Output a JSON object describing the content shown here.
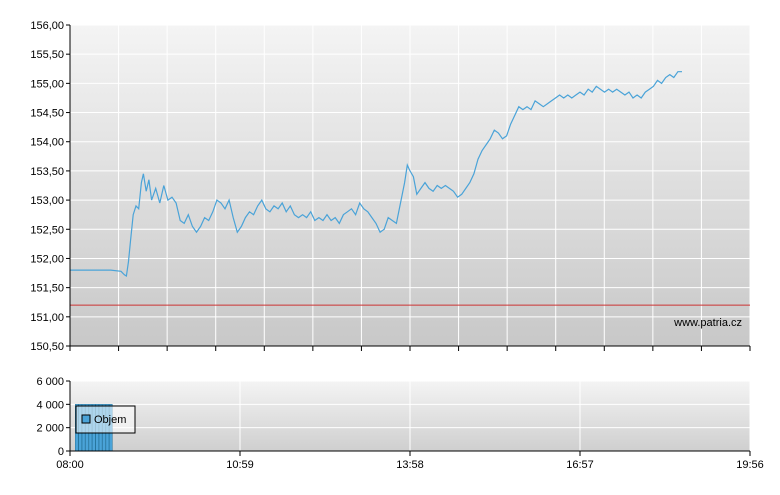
{
  "watermark": "www.patria.cz",
  "chart_data": [
    {
      "type": "line",
      "title": "",
      "xlabel": "",
      "ylabel": "",
      "ylim": [
        150.5,
        156.0
      ],
      "y_ticks": [
        "150,50",
        "151,00",
        "151,50",
        "152,00",
        "152,50",
        "153,00",
        "153,50",
        "154,00",
        "154,50",
        "155,00",
        "155,50",
        "156,00"
      ],
      "grid": true,
      "colors": {
        "price": "#4aa3d8",
        "reference": "#cc3333",
        "grid": "#ffffff",
        "bg_top": "#f2f2f2",
        "bg_bottom": "#cccccc"
      },
      "reference_line": 151.2,
      "series": [
        {
          "values": [
            [
              0.0,
              151.8
            ],
            [
              0.06,
              151.8
            ],
            [
              0.075,
              151.78
            ],
            [
              0.08,
              151.72
            ],
            [
              0.083,
              151.7
            ],
            [
              0.086,
              151.95
            ],
            [
              0.089,
              152.3
            ],
            [
              0.093,
              152.75
            ],
            [
              0.097,
              152.9
            ],
            [
              0.101,
              152.85
            ],
            [
              0.105,
              153.3
            ],
            [
              0.108,
              153.45
            ],
            [
              0.112,
              153.15
            ],
            [
              0.116,
              153.35
            ],
            [
              0.12,
              153.0
            ],
            [
              0.126,
              153.2
            ],
            [
              0.132,
              152.95
            ],
            [
              0.138,
              153.25
            ],
            [
              0.144,
              153.0
            ],
            [
              0.15,
              153.05
            ],
            [
              0.156,
              152.95
            ],
            [
              0.162,
              152.65
            ],
            [
              0.168,
              152.6
            ],
            [
              0.174,
              152.75
            ],
            [
              0.18,
              152.55
            ],
            [
              0.186,
              152.45
            ],
            [
              0.192,
              152.55
            ],
            [
              0.198,
              152.7
            ],
            [
              0.204,
              152.65
            ],
            [
              0.21,
              152.8
            ],
            [
              0.216,
              153.0
            ],
            [
              0.222,
              152.95
            ],
            [
              0.228,
              152.85
            ],
            [
              0.234,
              153.0
            ],
            [
              0.24,
              152.7
            ],
            [
              0.246,
              152.45
            ],
            [
              0.252,
              152.55
            ],
            [
              0.258,
              152.7
            ],
            [
              0.264,
              152.8
            ],
            [
              0.27,
              152.75
            ],
            [
              0.276,
              152.9
            ],
            [
              0.282,
              153.0
            ],
            [
              0.288,
              152.85
            ],
            [
              0.294,
              152.8
            ],
            [
              0.3,
              152.9
            ],
            [
              0.306,
              152.85
            ],
            [
              0.312,
              152.95
            ],
            [
              0.318,
              152.8
            ],
            [
              0.324,
              152.9
            ],
            [
              0.33,
              152.75
            ],
            [
              0.336,
              152.7
            ],
            [
              0.342,
              152.75
            ],
            [
              0.348,
              152.7
            ],
            [
              0.354,
              152.8
            ],
            [
              0.36,
              152.65
            ],
            [
              0.366,
              152.7
            ],
            [
              0.372,
              152.65
            ],
            [
              0.378,
              152.75
            ],
            [
              0.384,
              152.65
            ],
            [
              0.39,
              152.7
            ],
            [
              0.396,
              152.6
            ],
            [
              0.402,
              152.75
            ],
            [
              0.408,
              152.8
            ],
            [
              0.414,
              152.85
            ],
            [
              0.42,
              152.75
            ],
            [
              0.426,
              152.95
            ],
            [
              0.432,
              152.85
            ],
            [
              0.438,
              152.8
            ],
            [
              0.444,
              152.7
            ],
            [
              0.45,
              152.6
            ],
            [
              0.456,
              152.45
            ],
            [
              0.462,
              152.5
            ],
            [
              0.468,
              152.7
            ],
            [
              0.474,
              152.65
            ],
            [
              0.48,
              152.6
            ],
            [
              0.486,
              152.95
            ],
            [
              0.492,
              153.3
            ],
            [
              0.496,
              153.6
            ],
            [
              0.5,
              153.5
            ],
            [
              0.505,
              153.4
            ],
            [
              0.51,
              153.1
            ],
            [
              0.516,
              153.2
            ],
            [
              0.522,
              153.3
            ],
            [
              0.528,
              153.2
            ],
            [
              0.534,
              153.15
            ],
            [
              0.54,
              153.25
            ],
            [
              0.546,
              153.2
            ],
            [
              0.552,
              153.25
            ],
            [
              0.558,
              153.2
            ],
            [
              0.564,
              153.15
            ],
            [
              0.57,
              153.05
            ],
            [
              0.576,
              153.1
            ],
            [
              0.582,
              153.2
            ],
            [
              0.588,
              153.3
            ],
            [
              0.594,
              153.45
            ],
            [
              0.6,
              153.7
            ],
            [
              0.606,
              153.85
            ],
            [
              0.612,
              153.95
            ],
            [
              0.618,
              154.05
            ],
            [
              0.624,
              154.2
            ],
            [
              0.63,
              154.15
            ],
            [
              0.636,
              154.05
            ],
            [
              0.642,
              154.1
            ],
            [
              0.648,
              154.3
            ],
            [
              0.654,
              154.45
            ],
            [
              0.66,
              154.6
            ],
            [
              0.666,
              154.55
            ],
            [
              0.672,
              154.6
            ],
            [
              0.678,
              154.55
            ],
            [
              0.684,
              154.7
            ],
            [
              0.69,
              154.65
            ],
            [
              0.696,
              154.6
            ],
            [
              0.702,
              154.65
            ],
            [
              0.708,
              154.7
            ],
            [
              0.714,
              154.75
            ],
            [
              0.72,
              154.8
            ],
            [
              0.726,
              154.75
            ],
            [
              0.732,
              154.8
            ],
            [
              0.738,
              154.75
            ],
            [
              0.744,
              154.8
            ],
            [
              0.75,
              154.85
            ],
            [
              0.756,
              154.8
            ],
            [
              0.762,
              154.9
            ],
            [
              0.768,
              154.85
            ],
            [
              0.774,
              154.95
            ],
            [
              0.78,
              154.9
            ],
            [
              0.786,
              154.85
            ],
            [
              0.792,
              154.9
            ],
            [
              0.798,
              154.85
            ],
            [
              0.804,
              154.9
            ],
            [
              0.81,
              154.85
            ],
            [
              0.816,
              154.8
            ],
            [
              0.822,
              154.85
            ],
            [
              0.828,
              154.75
            ],
            [
              0.834,
              154.8
            ],
            [
              0.84,
              154.75
            ],
            [
              0.846,
              154.85
            ],
            [
              0.852,
              154.9
            ],
            [
              0.858,
              154.95
            ],
            [
              0.864,
              155.05
            ],
            [
              0.87,
              155.0
            ],
            [
              0.876,
              155.1
            ],
            [
              0.882,
              155.15
            ],
            [
              0.888,
              155.1
            ],
            [
              0.894,
              155.2
            ],
            [
              0.9,
              155.2
            ]
          ]
        }
      ]
    },
    {
      "type": "bar",
      "title": "",
      "xlabel": "",
      "ylabel": "",
      "ylim": [
        0,
        6000
      ],
      "y_ticks": [
        "0",
        "2 000",
        "4 000",
        "6 000"
      ],
      "x_ticks": [
        "08:00",
        "10:59",
        "13:58",
        "16:57",
        "19:56"
      ],
      "grid": true,
      "colors": {
        "bar": "#4aa3d8",
        "bar_outline": "#1f6f9a"
      },
      "legend": {
        "label": "Objem",
        "position": "top-left"
      },
      "series": [
        {
          "name": "Objem",
          "values": [
            [
              0.01,
              4000
            ],
            [
              0.015,
              4000
            ],
            [
              0.02,
              4000
            ],
            [
              0.025,
              4000
            ],
            [
              0.03,
              4000
            ],
            [
              0.035,
              4000
            ],
            [
              0.04,
              4000
            ],
            [
              0.045,
              4000
            ],
            [
              0.05,
              4000
            ],
            [
              0.055,
              4000
            ],
            [
              0.06,
              4000
            ]
          ]
        }
      ]
    }
  ]
}
